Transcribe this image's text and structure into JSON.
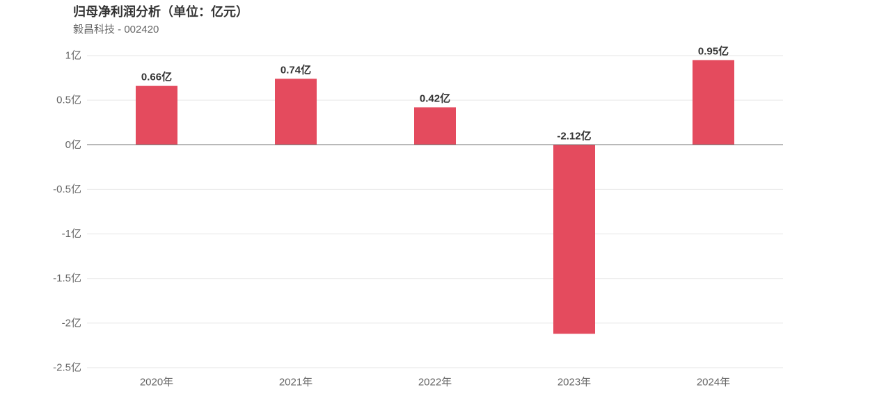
{
  "header": {
    "title": "归母净利润分析（单位：亿元）",
    "subtitle": "毅昌科技 - 002420"
  },
  "colors": {
    "bar": "#e44b5e",
    "grid": "#e6e6e6",
    "zero_line": "#666666",
    "tick_text": "#666666",
    "label_text": "#333333"
  },
  "chart_data": {
    "type": "bar",
    "title": "归母净利润分析（单位：亿元）",
    "subtitle": "毅昌科技 - 002420",
    "categories": [
      "2020年",
      "2021年",
      "2022年",
      "2023年",
      "2024年"
    ],
    "series": [
      {
        "values": [
          0.66,
          0.74,
          0.42,
          -2.12,
          0.95
        ],
        "labels": [
          "0.66亿",
          "0.74亿",
          "0.42亿",
          "-2.12亿",
          "0.95亿"
        ]
      }
    ],
    "ylim": [
      -2.5,
      1
    ],
    "yticks": [
      1,
      0.5,
      0,
      -0.5,
      -1,
      -1.5,
      -2,
      -2.5
    ],
    "ytick_labels": [
      "1亿",
      "0.5亿",
      "0亿",
      "-0.5亿",
      "-1亿",
      "-1.5亿",
      "-2亿",
      "-2.5亿"
    ],
    "grid": true,
    "legend": "none"
  }
}
